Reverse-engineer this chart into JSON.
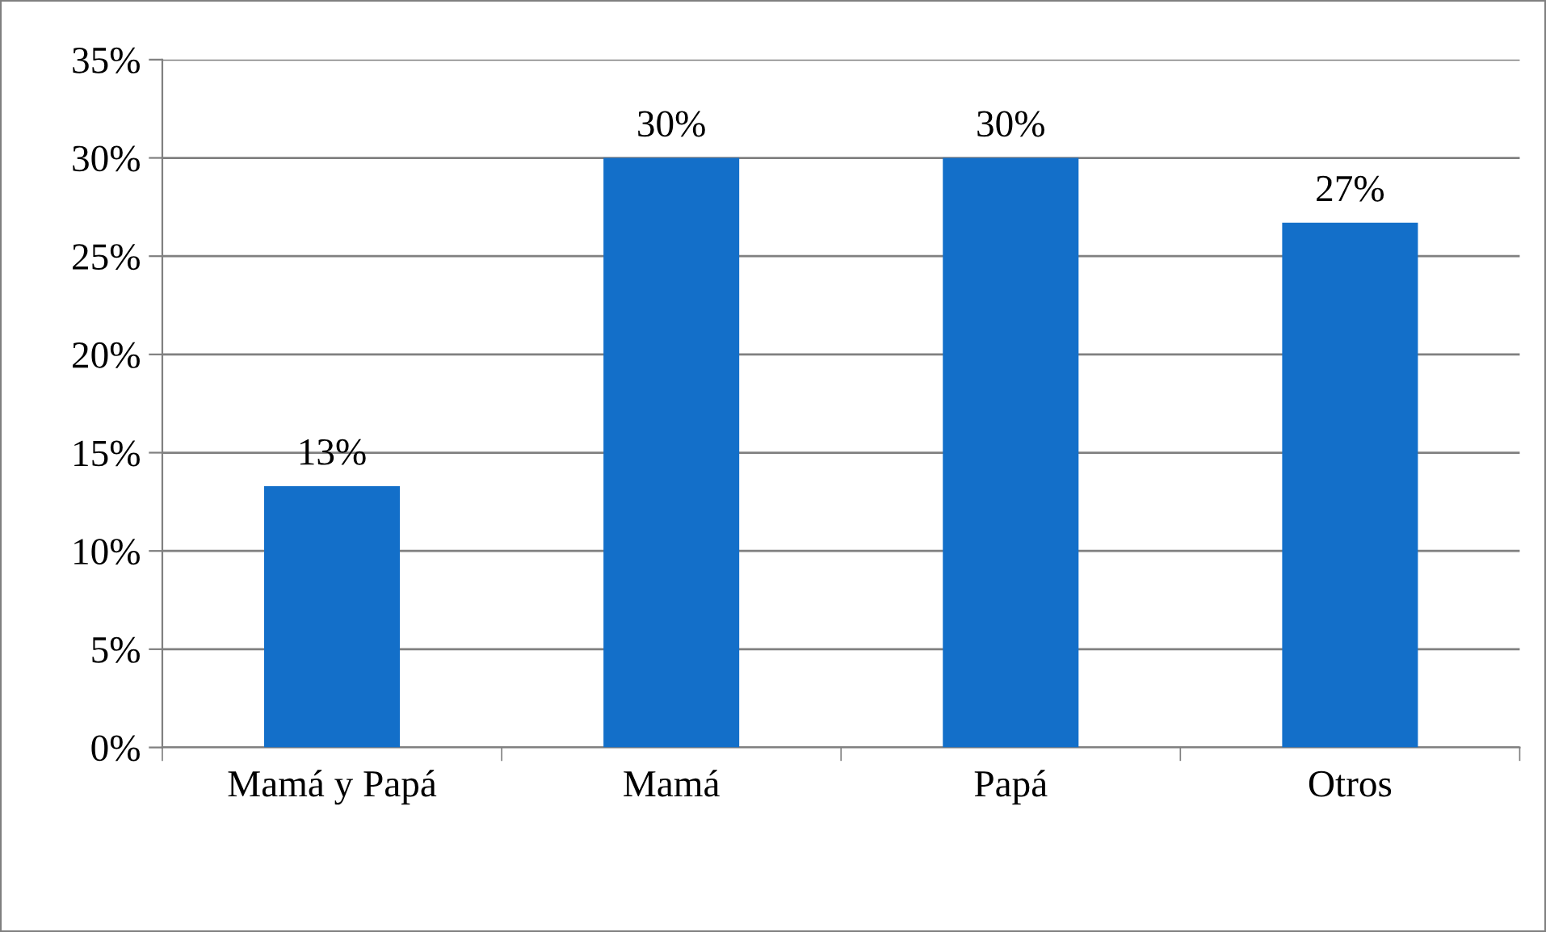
{
  "chart_data": {
    "type": "bar",
    "categories": [
      "Mamá y Papá",
      "Mamá",
      "Papá",
      "Otros"
    ],
    "values": [
      13.3,
      30,
      30,
      26.7
    ],
    "color": "#136fc9",
    "value_labels": [
      "13%",
      "30%",
      "30%",
      "27%"
    ],
    "ylim": [
      0,
      35
    ],
    "yticks": [
      {
        "value": 0,
        "label": "0%"
      },
      {
        "value": 5,
        "label": "5%"
      },
      {
        "value": 10,
        "label": "10%"
      },
      {
        "value": 15,
        "label": "15%"
      },
      {
        "value": 20,
        "label": "20%"
      },
      {
        "value": 25,
        "label": "25%"
      },
      {
        "value": 30,
        "label": "30%"
      },
      {
        "value": 35,
        "label": "35%"
      }
    ],
    "grid": "y",
    "legend": false
  }
}
